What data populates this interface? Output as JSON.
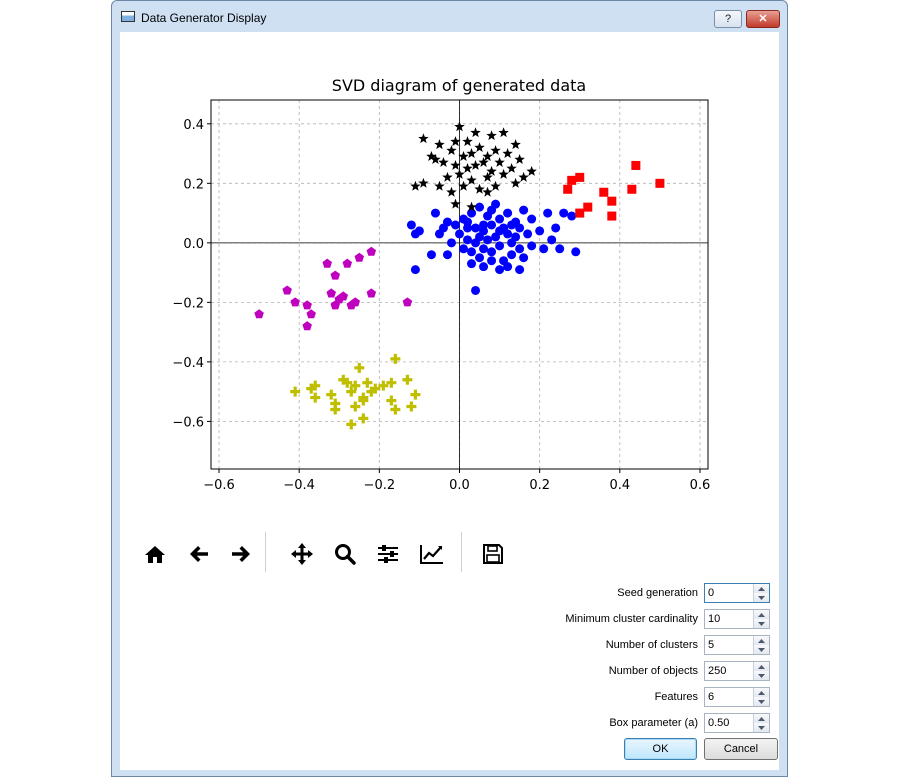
{
  "window": {
    "title": "Data Generator Display",
    "help_label": "?",
    "close_label": "✕"
  },
  "toolbar": {
    "icons": [
      "home-icon",
      "back-icon",
      "forward-icon",
      "pan-icon",
      "zoom-icon",
      "configure-subplots-icon",
      "edit-axis-icon",
      "save-icon"
    ]
  },
  "form": {
    "fields": [
      {
        "label": "Seed generation",
        "value": "0"
      },
      {
        "label": "Minimum cluster cardinality",
        "value": "10"
      },
      {
        "label": "Number of clusters",
        "value": "5"
      },
      {
        "label": "Number of objects",
        "value": "250"
      },
      {
        "label": "Features",
        "value": "6"
      },
      {
        "label": "Box parameter (a)",
        "value": "0.50"
      }
    ],
    "ok_label": "OK",
    "cancel_label": "Cancel"
  },
  "chart_data": {
    "type": "scatter",
    "title": "SVD diagram of generated data",
    "xlabel": "",
    "ylabel": "",
    "xlim": [
      -0.62,
      0.62
    ],
    "ylim": [
      -0.76,
      0.48
    ],
    "xticks": [
      -0.6,
      -0.4,
      -0.2,
      0.0,
      0.2,
      0.4,
      0.6
    ],
    "xtick_labels": [
      "−0.6",
      "−0.4",
      "−0.2",
      "0.0",
      "0.2",
      "0.4",
      "0.6"
    ],
    "yticks": [
      -0.6,
      -0.4,
      -0.2,
      0.0,
      0.2,
      0.4
    ],
    "ytick_labels": [
      "−0.6",
      "−0.4",
      "−0.2",
      "0.0",
      "0.2",
      "0.4"
    ],
    "grid": true,
    "grid_style": "dashed",
    "zero_lines": true,
    "series": [
      {
        "marker": "circle",
        "color": "#0000ff",
        "points": [
          [
            -0.12,
            0.06
          ],
          [
            -0.1,
            0.04
          ],
          [
            -0.11,
            0.03
          ],
          [
            -0.06,
            0.1
          ],
          [
            -0.05,
            0.03
          ],
          [
            -0.03,
            0.07
          ],
          [
            -0.02,
            0.0
          ],
          [
            -0.01,
            0.06
          ],
          [
            0.0,
            0.03
          ],
          [
            0.01,
            0.08
          ],
          [
            0.01,
            -0.02
          ],
          [
            0.02,
            0.05
          ],
          [
            0.02,
            0.01
          ],
          [
            0.03,
            0.1
          ],
          [
            0.03,
            -0.03
          ],
          [
            0.04,
            0.05
          ],
          [
            0.04,
            0.0
          ],
          [
            0.05,
            0.12
          ],
          [
            0.05,
            -0.05
          ],
          [
            0.06,
            0.04
          ],
          [
            0.06,
            -0.02
          ],
          [
            0.07,
            0.09
          ],
          [
            0.07,
            0.01
          ],
          [
            0.08,
            0.06
          ],
          [
            0.08,
            -0.03
          ],
          [
            0.09,
            0.13
          ],
          [
            0.09,
            0.02
          ],
          [
            0.1,
            0.08
          ],
          [
            0.1,
            -0.01
          ],
          [
            0.11,
            0.05
          ],
          [
            0.11,
            -0.06
          ],
          [
            0.12,
            0.1
          ],
          [
            0.12,
            0.03
          ],
          [
            0.13,
            0.0
          ],
          [
            0.13,
            -0.04
          ],
          [
            0.14,
            0.07
          ],
          [
            0.14,
            0.02
          ],
          [
            0.15,
            -0.02
          ],
          [
            0.15,
            0.05
          ],
          [
            0.16,
            0.11
          ],
          [
            0.16,
            -0.05
          ],
          [
            0.17,
            0.03
          ],
          [
            0.18,
            0.08
          ],
          [
            0.18,
            -0.01
          ],
          [
            0.2,
            0.04
          ],
          [
            0.21,
            -0.02
          ],
          [
            0.22,
            0.1
          ],
          [
            0.23,
            0.01
          ],
          [
            0.24,
            0.05
          ],
          [
            0.25,
            -0.02
          ],
          [
            0.26,
            0.1
          ],
          [
            0.28,
            0.09
          ],
          [
            0.29,
            -0.03
          ],
          [
            0.04,
            -0.16
          ],
          [
            -0.11,
            -0.09
          ],
          [
            -0.07,
            -0.04
          ],
          [
            -0.03,
            -0.04
          ],
          [
            0.03,
            -0.07
          ],
          [
            0.06,
            -0.08
          ],
          [
            0.08,
            -0.06
          ],
          [
            0.1,
            -0.09
          ],
          [
            0.12,
            -0.08
          ],
          [
            0.15,
            -0.09
          ],
          [
            0.06,
            0.06
          ],
          [
            0.1,
            0.04
          ],
          [
            0.08,
            0.11
          ],
          [
            0.02,
            0.07
          ],
          [
            -0.04,
            0.05
          ],
          [
            0.13,
            0.06
          ],
          [
            0.05,
            0.02
          ]
        ]
      },
      {
        "marker": "star",
        "color": "#000000",
        "points": [
          [
            -0.11,
            0.19
          ],
          [
            -0.09,
            0.2
          ],
          [
            -0.09,
            0.35
          ],
          [
            -0.07,
            0.29
          ],
          [
            -0.06,
            0.28
          ],
          [
            -0.05,
            0.19
          ],
          [
            -0.05,
            0.33
          ],
          [
            -0.04,
            0.27
          ],
          [
            -0.03,
            0.22
          ],
          [
            -0.02,
            0.31
          ],
          [
            -0.02,
            0.17
          ],
          [
            -0.01,
            0.26
          ],
          [
            -0.01,
            0.34
          ],
          [
            0.0,
            0.39
          ],
          [
            0.0,
            0.23
          ],
          [
            0.01,
            0.29
          ],
          [
            0.01,
            0.19
          ],
          [
            0.02,
            0.34
          ],
          [
            0.02,
            0.25
          ],
          [
            0.03,
            0.21
          ],
          [
            0.03,
            0.3
          ],
          [
            0.04,
            0.37
          ],
          [
            0.04,
            0.26
          ],
          [
            0.05,
            0.18
          ],
          [
            0.05,
            0.32
          ],
          [
            0.06,
            0.27
          ],
          [
            0.07,
            0.22
          ],
          [
            0.07,
            0.29
          ],
          [
            0.08,
            0.36
          ],
          [
            0.08,
            0.24
          ],
          [
            0.09,
            0.19
          ],
          [
            0.09,
            0.31
          ],
          [
            0.1,
            0.27
          ],
          [
            0.11,
            0.23
          ],
          [
            0.11,
            0.37
          ],
          [
            0.12,
            0.3
          ],
          [
            0.13,
            0.25
          ],
          [
            0.14,
            0.2
          ],
          [
            0.14,
            0.33
          ],
          [
            0.15,
            0.28
          ],
          [
            0.16,
            0.22
          ],
          [
            0.18,
            0.24
          ],
          [
            0.03,
            0.12
          ],
          [
            -0.01,
            0.13
          ],
          [
            0.07,
            0.17
          ]
        ]
      },
      {
        "marker": "square",
        "color": "#ff0000",
        "points": [
          [
            0.27,
            0.18
          ],
          [
            0.28,
            0.21
          ],
          [
            0.3,
            0.22
          ],
          [
            0.3,
            0.1
          ],
          [
            0.32,
            0.12
          ],
          [
            0.36,
            0.17
          ],
          [
            0.38,
            0.09
          ],
          [
            0.38,
            0.14
          ],
          [
            0.43,
            0.18
          ],
          [
            0.44,
            0.26
          ],
          [
            0.5,
            0.2
          ]
        ]
      },
      {
        "marker": "pentagon",
        "color": "#bf00bf",
        "points": [
          [
            -0.5,
            -0.24
          ],
          [
            -0.43,
            -0.16
          ],
          [
            -0.41,
            -0.2
          ],
          [
            -0.38,
            -0.21
          ],
          [
            -0.38,
            -0.28
          ],
          [
            -0.37,
            -0.24
          ],
          [
            -0.33,
            -0.07
          ],
          [
            -0.32,
            -0.17
          ],
          [
            -0.31,
            -0.11
          ],
          [
            -0.31,
            -0.21
          ],
          [
            -0.3,
            -0.19
          ],
          [
            -0.29,
            -0.18
          ],
          [
            -0.28,
            -0.07
          ],
          [
            -0.27,
            -0.21
          ],
          [
            -0.26,
            -0.2
          ],
          [
            -0.25,
            -0.05
          ],
          [
            -0.22,
            -0.17
          ],
          [
            -0.22,
            -0.03
          ],
          [
            -0.13,
            -0.2
          ]
        ]
      },
      {
        "marker": "plus",
        "color": "#bfbf00",
        "points": [
          [
            -0.41,
            -0.5
          ],
          [
            -0.37,
            -0.49
          ],
          [
            -0.36,
            -0.52
          ],
          [
            -0.36,
            -0.48
          ],
          [
            -0.32,
            -0.51
          ],
          [
            -0.31,
            -0.54
          ],
          [
            -0.31,
            -0.56
          ],
          [
            -0.29,
            -0.46
          ],
          [
            -0.28,
            -0.47
          ],
          [
            -0.27,
            -0.5
          ],
          [
            -0.27,
            -0.61
          ],
          [
            -0.26,
            -0.48
          ],
          [
            -0.26,
            -0.55
          ],
          [
            -0.25,
            -0.42
          ],
          [
            -0.24,
            -0.52
          ],
          [
            -0.24,
            -0.59
          ],
          [
            -0.23,
            -0.47
          ],
          [
            -0.22,
            -0.5
          ],
          [
            -0.21,
            -0.49
          ],
          [
            -0.19,
            -0.48
          ],
          [
            -0.17,
            -0.53
          ],
          [
            -0.17,
            -0.47
          ],
          [
            -0.16,
            -0.39
          ],
          [
            -0.16,
            -0.56
          ],
          [
            -0.13,
            -0.46
          ],
          [
            -0.12,
            -0.55
          ],
          [
            -0.11,
            -0.51
          ],
          [
            -0.24,
            -0.53
          ]
        ]
      }
    ]
  }
}
